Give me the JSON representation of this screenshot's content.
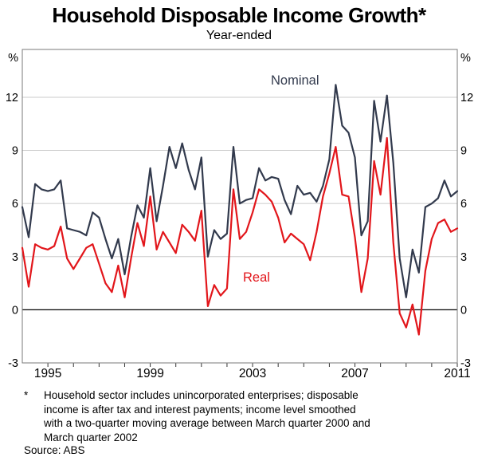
{
  "page": {
    "title": "Household Disposable Income Growth*",
    "subtitle": "Year-ended"
  },
  "chart_data": {
    "type": "line",
    "title": "Household Disposable Income Growth*",
    "subtitle": "Year-ended",
    "unit_left": "%",
    "unit_right": "%",
    "frequency": "quarterly",
    "x_start": 1994.0,
    "x_step": 0.25,
    "xlim": [
      1994.0,
      2011.0
    ],
    "ylim": [
      -3,
      14.7
    ],
    "y_ticks": [
      -3,
      0,
      3,
      6,
      9,
      12
    ],
    "gridline_values": [
      3,
      6,
      9,
      12
    ],
    "zero_line": 0,
    "x_ticks": [
      1995,
      1996,
      1997,
      1998,
      1999,
      2000,
      2001,
      2002,
      2003,
      2004,
      2005,
      2006,
      2007,
      2008,
      2009,
      2010,
      2011
    ],
    "x_tick_label_years": [
      1995,
      1999,
      2003,
      2007,
      2011
    ],
    "grid": "horizontal-only",
    "legend_position": "inline-annotations",
    "series": [
      {
        "name": "Nominal",
        "color": "#323a4d",
        "values": [
          5.8,
          4.1,
          7.1,
          6.8,
          6.7,
          6.8,
          7.3,
          4.6,
          4.5,
          4.4,
          4.2,
          5.5,
          5.2,
          4.0,
          2.9,
          4.0,
          2.0,
          4.1,
          5.9,
          5.2,
          8.0,
          5.0,
          7.0,
          9.2,
          8.0,
          9.4,
          7.9,
          6.8,
          8.6,
          3.0,
          4.5,
          4.0,
          4.3,
          9.2,
          6.0,
          6.2,
          6.3,
          8.0,
          7.3,
          7.5,
          7.4,
          6.2,
          5.4,
          7.0,
          6.5,
          6.6,
          6.1,
          7.0,
          8.5,
          12.7,
          10.4,
          10.0,
          8.6,
          4.2,
          5.0,
          11.8,
          9.5,
          12.1,
          8.3,
          2.9,
          0.7,
          3.4,
          2.1,
          5.8,
          6.0,
          6.3,
          7.3,
          6.4,
          6.7
        ]
      },
      {
        "name": "Real",
        "color": "#e2161b",
        "values": [
          3.5,
          1.3,
          3.7,
          3.5,
          3.4,
          3.6,
          4.7,
          2.9,
          2.3,
          2.9,
          3.5,
          3.7,
          2.6,
          1.5,
          1.0,
          2.5,
          0.7,
          2.9,
          4.9,
          3.6,
          6.4,
          3.4,
          4.4,
          3.8,
          3.2,
          4.8,
          4.4,
          3.9,
          5.6,
          0.2,
          1.4,
          0.8,
          1.2,
          6.8,
          4.0,
          4.4,
          5.5,
          6.8,
          6.5,
          6.1,
          5.2,
          3.8,
          4.3,
          4.0,
          3.7,
          2.8,
          4.4,
          6.4,
          7.7,
          9.2,
          6.5,
          6.4,
          4.1,
          1.0,
          2.9,
          8.4,
          6.5,
          9.7,
          3.8,
          -0.2,
          -1.0,
          0.3,
          -1.4,
          2.2,
          4.0,
          4.9,
          5.1,
          4.4,
          4.6
        ]
      }
    ],
    "colors": {
      "nominal_line": "#323a4d",
      "real_line": "#e2161b",
      "gridline": "#cbcbcb",
      "zero_line": "#000000",
      "plot_border": "#7a7a7a",
      "text": "#000000"
    }
  },
  "footnote": {
    "marker": "*",
    "lines": [
      "Household sector includes unincorporated enterprises; disposable",
      "income is after tax and interest payments; income level smoothed",
      "with a two-quarter moving average between March quarter 2000 and",
      "March quarter 2002"
    ],
    "source": "Source: ABS"
  }
}
